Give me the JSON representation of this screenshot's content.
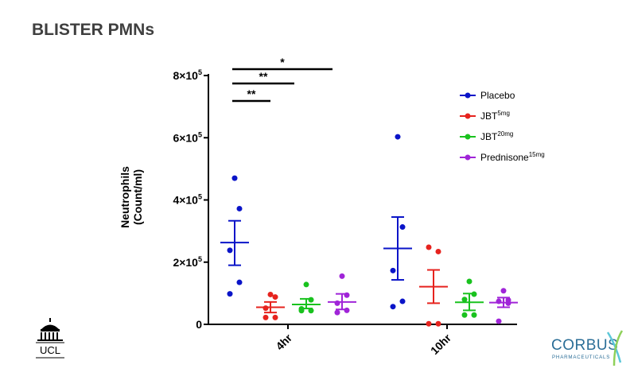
{
  "slide": {
    "title": "BLISTER PMNs"
  },
  "logos": {
    "left": {
      "text": "UCL"
    },
    "right": {
      "name": "CORBUS",
      "sub": "PHARMACEUTICALS"
    }
  },
  "colors": {
    "placebo": "#0a14c8",
    "jbt5": "#e6231e",
    "jbt20": "#19c21e",
    "pred": "#a024d8"
  },
  "chart_data": {
    "type": "scatter",
    "title": "",
    "ylabel": [
      "Neutrophils",
      "(Count/ml)"
    ],
    "categories": [
      "4hr",
      "10hr"
    ],
    "ylim": [
      0,
      800000
    ],
    "yticks": [
      {
        "value": 0,
        "base": "0",
        "exp": ""
      },
      {
        "value": 200000,
        "base": "2×10",
        "exp": "5"
      },
      {
        "value": 400000,
        "base": "4×10",
        "exp": "5"
      },
      {
        "value": 600000,
        "base": "6×10",
        "exp": "5"
      },
      {
        "value": 800000,
        "base": "8×10",
        "exp": "5"
      }
    ],
    "series": [
      {
        "name": "Placebo",
        "sup": "",
        "color": "#0a14c8",
        "groups": [
          {
            "category": "4hr",
            "points": [
              470000,
              372000,
              238000,
              135000,
              98000
            ],
            "mean": 263000,
            "sem_low": 190000,
            "sem_high": 333000
          },
          {
            "category": "10hr",
            "points": [
              603000,
              313000,
              173000,
              74000,
              57000
            ],
            "mean": 244000,
            "sem_low": 143000,
            "sem_high": 345000
          }
        ]
      },
      {
        "name": "JBT",
        "sup": "5mg",
        "color": "#e6231e",
        "groups": [
          {
            "category": "4hr",
            "points": [
              96000,
              88000,
              52000,
              22000,
              22000
            ],
            "mean": 55000,
            "sem_low": 38000,
            "sem_high": 72000
          },
          {
            "category": "10hr",
            "points": [
              248000,
              234000,
              2000,
              2000
            ],
            "mean": 121000,
            "sem_low": 68000,
            "sem_high": 175000
          }
        ]
      },
      {
        "name": "JBT",
        "sup": "20mg",
        "color": "#19c21e",
        "groups": [
          {
            "category": "4hr",
            "points": [
              128000,
              79000,
              50000,
              44000,
              44000
            ],
            "mean": 64000,
            "sem_low": 51000,
            "sem_high": 82000
          },
          {
            "category": "10hr",
            "points": [
              138000,
              97000,
              80000,
              30000,
              30000
            ],
            "mean": 71000,
            "sem_low": 45000,
            "sem_high": 99000
          }
        ]
      },
      {
        "name": "Prednisone",
        "sup": "15mg",
        "color": "#a024d8",
        "groups": [
          {
            "category": "4hr",
            "points": [
              155000,
              94000,
              68000,
              45000,
              38000
            ],
            "mean": 72000,
            "sem_low": 48000,
            "sem_high": 98000
          },
          {
            "category": "10hr",
            "points": [
              108000,
              78000,
              74000,
              68000,
              10000
            ],
            "mean": 70000,
            "sem_low": 55000,
            "sem_high": 86000
          }
        ]
      }
    ],
    "significance": [
      {
        "label": "*",
        "from": "Placebo 4hr",
        "to": "Prednisone 4hr"
      },
      {
        "label": "**",
        "from": "Placebo 4hr",
        "to": "JBT20mg 4hr"
      },
      {
        "label": "**",
        "from": "Placebo 4hr",
        "to": "JBT5mg 4hr"
      }
    ],
    "legend_position": "top-right",
    "grid": false
  }
}
